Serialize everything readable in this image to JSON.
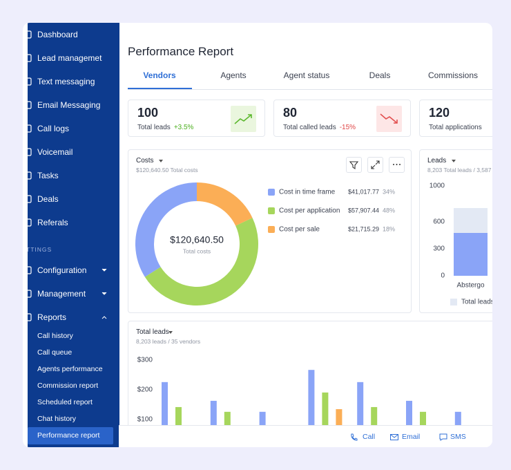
{
  "nav": {
    "main": [
      "Dashboard",
      "Lead managemet",
      "Text messaging",
      "Email Messaging",
      "Call logs",
      "Voicemail",
      "Tasks",
      "Deals",
      "Referals"
    ],
    "section": "TTINGS",
    "settings": [
      "Configuration",
      "Management",
      "Reports"
    ],
    "reports": [
      "Call history",
      "Call queue",
      "Agents performance",
      "Commission report",
      "Scheduled report",
      "Chat history",
      "Performance report"
    ]
  },
  "header": {
    "title": "Performance Report"
  },
  "tabs": [
    "Vendors",
    "Agents",
    "Agent status",
    "Deals",
    "Commissions"
  ],
  "kpis": [
    {
      "value": 100,
      "label": "Total leads",
      "change": "+3.5%"
    },
    {
      "value": 80,
      "label": "Total called leads",
      "change": "-15%"
    },
    {
      "value": 120,
      "label": "Total applications"
    }
  ],
  "chart_data": [
    {
      "type": "donut",
      "title": "Costs",
      "subtitle": "$120,640.50 Total costs",
      "center_value": "$120,640.50",
      "center_label": "Total costs",
      "categories": [
        "Cost in time frame",
        "Cost per application",
        "Cost per sale"
      ],
      "values": [
        34,
        48,
        18
      ],
      "value_labels": [
        "34%",
        "48%",
        "18%"
      ],
      "amounts": [
        41017.77,
        57907.44,
        21715.29
      ],
      "amount_labels": [
        "$41,017.77",
        "$57,907.44",
        "$21,715.29"
      ],
      "colors": [
        "#8aa4f7",
        "#a6d65c",
        "#fbae56"
      ]
    },
    {
      "type": "bar",
      "stacked": true,
      "title": "Leads",
      "subtitle": "8,203 Total leads / 3,587",
      "categories": [
        "Abstergo"
      ],
      "series": [
        {
          "color": "#8aa4f7",
          "values": [
            477
          ]
        },
        {
          "name": "Total leads",
          "color": "#e3e9f4",
          "values": [
            277
          ]
        }
      ],
      "ylim": [
        0,
        1000
      ],
      "yticks": [
        0,
        300,
        600,
        1000
      ]
    },
    {
      "type": "bar",
      "title": "Total leads",
      "subtitle": "8,203 leads / 35 vendors",
      "categories": [
        null,
        null,
        null,
        null,
        null,
        null,
        null
      ],
      "series": [
        {
          "color": "#8aa4f7",
          "values": [
            226,
            163,
            126,
            267,
            226,
            163,
            126
          ]
        },
        {
          "color": "#a6d65c",
          "values": [
            142,
            126,
            null,
            191,
            142,
            126,
            null
          ]
        },
        {
          "color": "#fbae56",
          "values": [
            null,
            null,
            null,
            135,
            null,
            null,
            null
          ]
        }
      ],
      "ylim": [
        0,
        300
      ],
      "yticks": [
        {
          "value": 100,
          "label": "$100"
        },
        {
          "value": 200,
          "label": "$200"
        },
        {
          "value": 300,
          "label": "$300"
        }
      ]
    }
  ],
  "actions": [
    "Call",
    "Email",
    "SMS"
  ]
}
